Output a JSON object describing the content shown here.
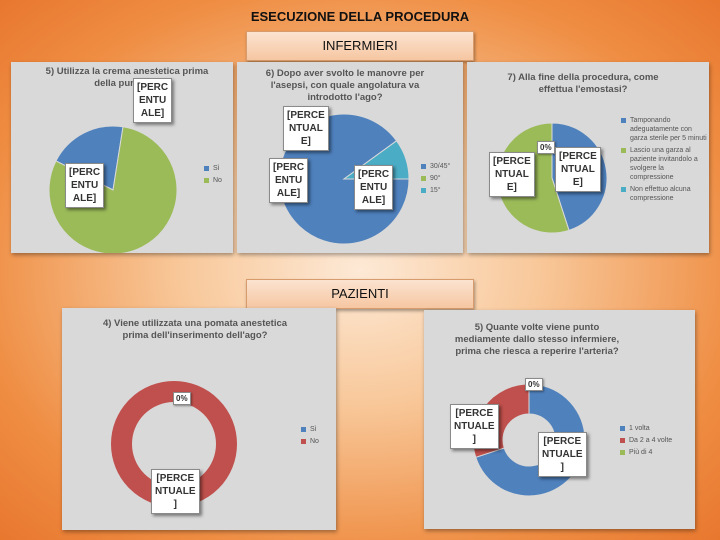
{
  "page_title": "ESECUZIONE DELLA PROCEDURA",
  "sections": {
    "nurses": "INFERMIERI",
    "patients": "PAZIENTI"
  },
  "colors": {
    "blue": "#4f81bd",
    "red": "#c0504d",
    "green": "#9bbb59",
    "teal": "#4bacc6"
  },
  "chart_data": [
    {
      "type": "pie",
      "title": "5) Utilizza la crema anestetica prima della puntura?",
      "categories": [
        "Sì",
        "No"
      ],
      "values": [
        20,
        80
      ],
      "data_labels": [
        "[PERC\nENTU\nALE]",
        "[PERC\nENTU\nALE]"
      ],
      "legend_position": "right"
    },
    {
      "type": "pie",
      "title": "6) Dopo aver svolto le manovre per l'asepsi, con quale angolatura va introdotto l'ago?",
      "categories": [
        "30/45°",
        "90°",
        "15°"
      ],
      "values": [
        90,
        0,
        10
      ],
      "data_labels": [
        "[PERC\nENTU\nALE]",
        "[PERCE\nNTUAL\nE]",
        "[PERC\nENTU\nALE]"
      ],
      "legend_position": "right"
    },
    {
      "type": "pie",
      "title": "7) Alla fine della procedura, come effettua l'emostasi?",
      "categories": [
        "Tamponando adeguatamente con garza sterile per 5 minuti",
        "Lascio una garza al paziente invitandolo a svolgere la compressione",
        "Non effettuo alcuna compressione"
      ],
      "values": [
        45,
        55,
        0
      ],
      "data_labels": [
        "[PERCE\nNTUAL\nE]",
        "[PERCE\nNTUAL\nE]",
        "0%"
      ],
      "legend_position": "right"
    },
    {
      "type": "pie",
      "title": "4) Viene utilizzata una pomata anestetica prima dell'inserimento dell'ago?",
      "categories": [
        "Sì",
        "No"
      ],
      "values": [
        0,
        100
      ],
      "data_labels": [
        "0%",
        "[PERCE\nNTUALE\n]"
      ],
      "legend_position": "right"
    },
    {
      "type": "pie",
      "title": "5) Quante volte viene punto mediamente dallo stesso infermiere, prima che riesca a reperire l'arteria?",
      "categories": [
        "1 volta",
        "Da 2 a 4 volte",
        "Più di 4"
      ],
      "values": [
        70,
        30,
        0
      ],
      "data_labels": [
        "[PERCE\nNTUALE\n]",
        "[PERCE\nNTUALE\n]",
        "0%"
      ],
      "legend_position": "right"
    }
  ]
}
